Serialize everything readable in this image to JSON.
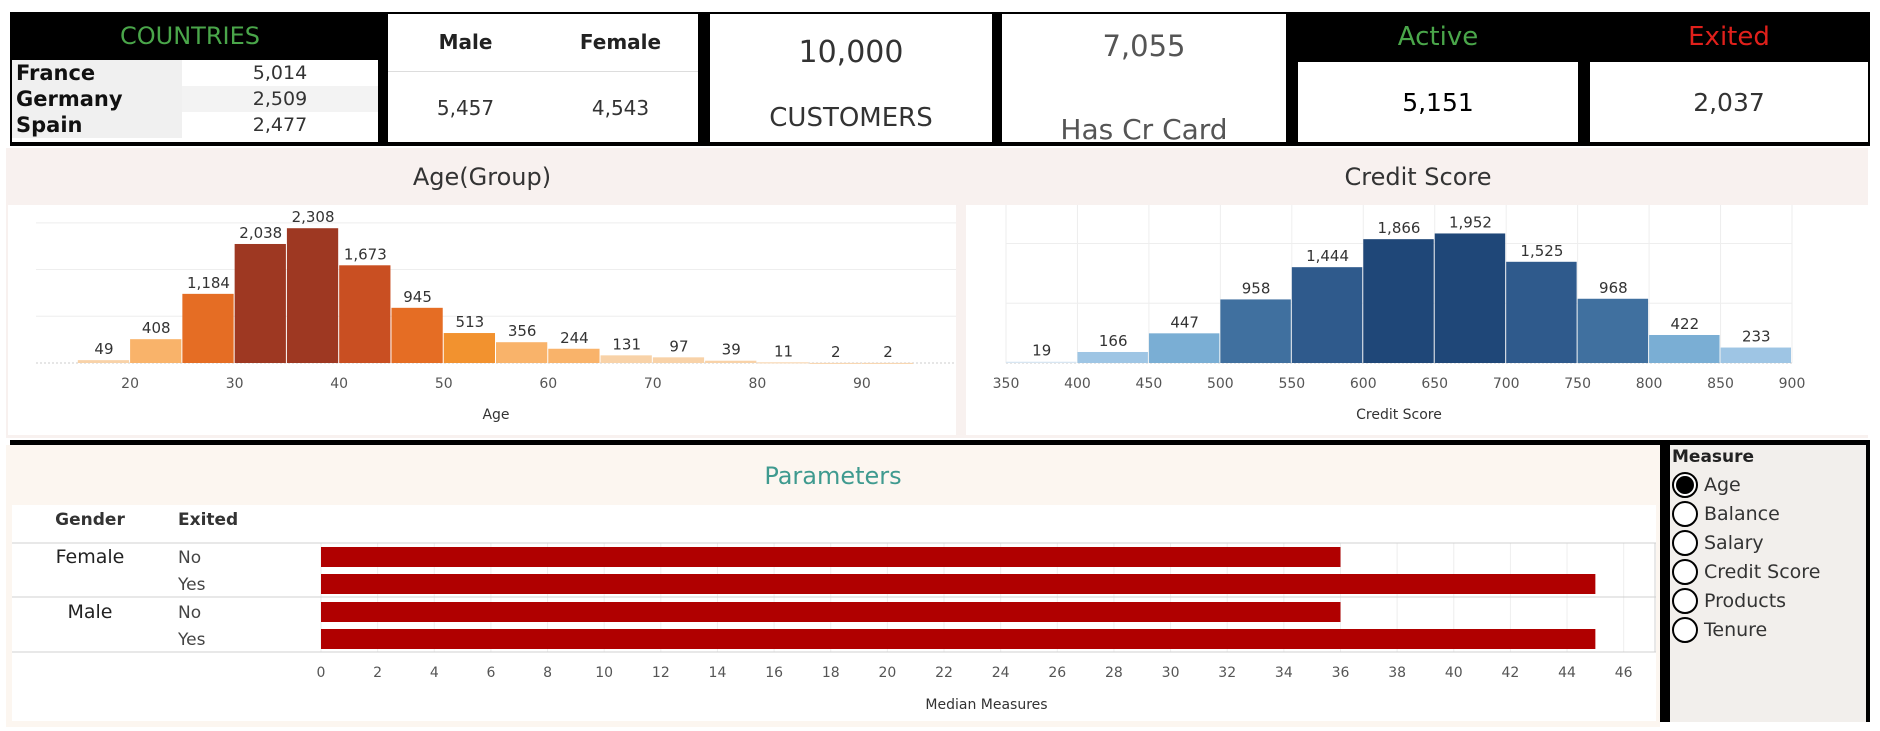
{
  "colors": {
    "green": "#4aa64a",
    "red": "#e0201b",
    "teal": "#3f9a8f",
    "bar_red": "#b00000",
    "age_palette": [
      "#f8d2a8",
      "#f9b36a",
      "#f2922f",
      "#e56d24",
      "#c94f22",
      "#9e3822"
    ],
    "credit_palette": [
      "#d8e6f2",
      "#9ec5e4",
      "#7aaed4",
      "#5b8fc2",
      "#40709f",
      "#2f5a8c",
      "#1f4778"
    ]
  },
  "countries": {
    "title": "COUNTRIES",
    "rows": [
      {
        "name": "France",
        "value": "5,014"
      },
      {
        "name": "Germany",
        "value": "2,509"
      },
      {
        "name": "Spain",
        "value": "2,477"
      }
    ]
  },
  "gender": {
    "male_label": "Male",
    "female_label": "Female",
    "male_value": "5,457",
    "female_value": "4,543"
  },
  "customers": {
    "value": "10,000",
    "label": "CUSTOMERS"
  },
  "cr_card": {
    "value": "7,055",
    "label": "Has Cr Card"
  },
  "active": {
    "label": "Active",
    "value": "5,151"
  },
  "exited": {
    "label": "Exited",
    "value": "2,037"
  },
  "age_chart": {
    "title": "Age(Group)",
    "xlabel": "Age",
    "ticks": [
      "20",
      "30",
      "40",
      "50",
      "60",
      "70",
      "80",
      "90"
    ]
  },
  "credit_chart": {
    "title": "Credit Score",
    "xlabel": "Credit Score",
    "ticks": [
      "350",
      "400",
      "450",
      "500",
      "550",
      "600",
      "650",
      "700",
      "750",
      "800",
      "850",
      "900"
    ]
  },
  "params": {
    "title": "Parameters",
    "col_gender": "Gender",
    "col_exited": "Exited",
    "groups": [
      {
        "gender": "Female",
        "rows": [
          "No",
          "Yes"
        ]
      },
      {
        "gender": "Male",
        "rows": [
          "No",
          "Yes"
        ]
      }
    ],
    "xlabel": "Median Measures",
    "ticks": [
      "0",
      "2",
      "4",
      "6",
      "8",
      "10",
      "12",
      "14",
      "16",
      "18",
      "20",
      "22",
      "24",
      "26",
      "28",
      "30",
      "32",
      "34",
      "36",
      "38",
      "40",
      "42",
      "44",
      "46"
    ]
  },
  "measure": {
    "title": "Measure",
    "options": [
      "Age",
      "Balance",
      "Salary",
      "Credit Score",
      "Products",
      "Tenure"
    ],
    "selected": "Age"
  },
  "chart_data": [
    {
      "type": "bar",
      "title": "Age(Group)",
      "xlabel": "Age",
      "x": [
        15,
        20,
        25,
        30,
        35,
        40,
        45,
        50,
        55,
        60,
        65,
        70,
        75,
        80,
        85,
        90
      ],
      "values": [
        49,
        408,
        1184,
        2038,
        2308,
        1673,
        945,
        513,
        356,
        244,
        131,
        97,
        39,
        11,
        2,
        2
      ],
      "xlim": [
        11,
        99
      ],
      "ylim": [
        0,
        2500
      ]
    },
    {
      "type": "bar",
      "title": "Credit Score",
      "xlabel": "Credit Score",
      "x": [
        350,
        400,
        450,
        500,
        550,
        600,
        650,
        700,
        750,
        800,
        850
      ],
      "values": [
        19,
        166,
        447,
        958,
        1444,
        1866,
        1952,
        1525,
        968,
        422,
        233
      ],
      "xlim": [
        350,
        900
      ],
      "ylim": [
        0,
        2200
      ]
    },
    {
      "type": "bar",
      "title": "Parameters",
      "xlabel": "Median Measures",
      "categories": [
        "Female No",
        "Female Yes",
        "Male No",
        "Male Yes"
      ],
      "values": [
        36,
        45,
        36,
        45
      ],
      "xlim": [
        0,
        47
      ]
    }
  ]
}
